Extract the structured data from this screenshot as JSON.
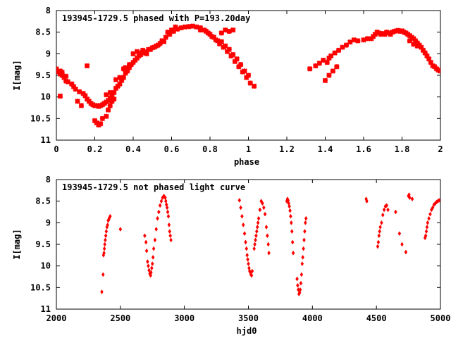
{
  "chart_data": [
    {
      "type": "scatter",
      "title": "193945-1729.5 phased with P=193.20day",
      "xlabel": "phase",
      "ylabel": "I[mag]",
      "xlim": [
        0,
        2
      ],
      "ylim": [
        8,
        11
      ],
      "y_inverted": true,
      "xticks": [
        0,
        0.2,
        0.4,
        0.6,
        0.8,
        1,
        1.2,
        1.4,
        1.6,
        1.8,
        2
      ],
      "xtick_labels": [
        "0",
        "0.2",
        "0.4",
        "0.6",
        "0.8",
        "1",
        "1.2",
        "1.4",
        "1.6",
        "1.8",
        "2"
      ],
      "yticks": [
        8,
        8.5,
        9,
        9.5,
        10,
        10.5,
        11
      ],
      "ytick_labels": [
        "8",
        "8.5",
        "9",
        "9.5",
        "10",
        "10.5",
        "11"
      ],
      "grid": false,
      "marker_color": "#ff0000",
      "marker": "star",
      "points": [
        [
          0.0,
          9.38
        ],
        [
          0.01,
          9.42
        ],
        [
          0.02,
          9.47
        ],
        [
          0.03,
          9.5
        ],
        [
          0.04,
          9.55
        ],
        [
          0.05,
          9.63
        ],
        [
          0.06,
          9.65
        ],
        [
          0.08,
          9.7
        ],
        [
          0.09,
          9.76
        ],
        [
          0.1,
          9.82
        ],
        [
          0.12,
          9.88
        ],
        [
          0.14,
          9.92
        ],
        [
          0.15,
          9.97
        ],
        [
          0.16,
          10.05
        ],
        [
          0.17,
          10.1
        ],
        [
          0.18,
          10.15
        ],
        [
          0.19,
          10.18
        ],
        [
          0.2,
          10.2
        ],
        [
          0.21,
          10.2
        ],
        [
          0.22,
          10.22
        ],
        [
          0.23,
          10.2
        ],
        [
          0.24,
          10.18
        ],
        [
          0.25,
          10.15
        ],
        [
          0.26,
          10.12
        ],
        [
          0.27,
          10.08
        ],
        [
          0.28,
          10.02
        ],
        [
          0.29,
          9.95
        ],
        [
          0.3,
          9.9
        ],
        [
          0.31,
          9.8
        ],
        [
          0.32,
          9.75
        ],
        [
          0.33,
          9.7
        ],
        [
          0.34,
          9.62
        ],
        [
          0.35,
          9.55
        ],
        [
          0.36,
          9.45
        ],
        [
          0.37,
          9.4
        ],
        [
          0.38,
          9.32
        ],
        [
          0.39,
          9.25
        ],
        [
          0.4,
          9.2
        ],
        [
          0.41,
          9.15
        ],
        [
          0.42,
          9.1
        ],
        [
          0.43,
          9.05
        ],
        [
          0.44,
          9.02
        ],
        [
          0.45,
          8.98
        ],
        [
          0.47,
          8.95
        ],
        [
          0.49,
          8.9
        ],
        [
          0.51,
          8.85
        ],
        [
          0.53,
          8.8
        ],
        [
          0.55,
          8.7
        ],
        [
          0.57,
          8.62
        ],
        [
          0.59,
          8.55
        ],
        [
          0.61,
          8.48
        ],
        [
          0.63,
          8.43
        ],
        [
          0.65,
          8.4
        ],
        [
          0.67,
          8.38
        ],
        [
          0.69,
          8.37
        ],
        [
          0.71,
          8.36
        ],
        [
          0.73,
          8.38
        ],
        [
          0.75,
          8.4
        ],
        [
          0.77,
          8.45
        ],
        [
          0.79,
          8.52
        ],
        [
          0.81,
          8.6
        ],
        [
          0.83,
          8.68
        ],
        [
          0.85,
          8.77
        ],
        [
          0.87,
          8.85
        ],
        [
          0.89,
          8.95
        ],
        [
          0.91,
          9.05
        ],
        [
          0.93,
          9.18
        ],
        [
          0.95,
          9.3
        ],
        [
          0.97,
          9.42
        ],
        [
          0.99,
          9.55
        ],
        [
          1.01,
          9.68
        ],
        [
          1.03,
          9.75
        ],
        [
          0.0,
          9.35
        ],
        [
          0.02,
          9.4
        ],
        [
          0.03,
          9.43
        ],
        [
          0.05,
          9.52
        ],
        [
          0.2,
          10.55
        ],
        [
          0.21,
          10.6
        ],
        [
          0.22,
          10.65
        ],
        [
          0.23,
          10.62
        ],
        [
          0.24,
          10.5
        ],
        [
          0.26,
          10.45
        ],
        [
          0.27,
          10.3
        ],
        [
          0.28,
          10.2
        ],
        [
          0.29,
          10.1
        ],
        [
          0.3,
          10.05
        ],
        [
          0.16,
          9.28
        ],
        [
          0.02,
          9.98
        ],
        [
          0.13,
          10.2
        ],
        [
          0.11,
          10.1
        ],
        [
          0.26,
          9.95
        ],
        [
          0.28,
          9.9
        ],
        [
          0.31,
          9.6
        ],
        [
          0.33,
          9.55
        ],
        [
          0.35,
          9.35
        ],
        [
          0.36,
          9.32
        ],
        [
          0.38,
          9.25
        ],
        [
          0.4,
          9.0
        ],
        [
          0.42,
          8.95
        ],
        [
          0.44,
          8.98
        ],
        [
          0.45,
          8.92
        ],
        [
          0.47,
          9.0
        ],
        [
          0.48,
          8.9
        ],
        [
          0.5,
          8.86
        ],
        [
          0.52,
          8.82
        ],
        [
          0.54,
          8.76
        ],
        [
          0.56,
          8.72
        ],
        [
          0.58,
          8.5
        ],
        [
          0.6,
          8.45
        ],
        [
          0.62,
          8.38
        ],
        [
          0.75,
          8.45
        ],
        [
          0.78,
          8.48
        ],
        [
          0.8,
          8.55
        ],
        [
          0.82,
          8.62
        ],
        [
          0.84,
          8.7
        ],
        [
          0.86,
          8.72
        ],
        [
          0.88,
          8.82
        ],
        [
          0.9,
          8.9
        ],
        [
          0.92,
          9.02
        ],
        [
          0.94,
          9.12
        ],
        [
          0.96,
          9.25
        ],
        [
          0.98,
          9.4
        ],
        [
          1.0,
          9.5
        ],
        [
          0.88,
          8.45
        ],
        [
          0.9,
          8.48
        ],
        [
          0.92,
          8.45
        ],
        [
          0.86,
          8.52
        ],
        [
          1.32,
          9.35
        ],
        [
          1.35,
          9.28
        ],
        [
          1.37,
          9.22
        ],
        [
          1.39,
          9.15
        ],
        [
          1.41,
          9.2
        ],
        [
          1.42,
          9.1
        ],
        [
          1.43,
          9.05
        ],
        [
          1.45,
          8.98
        ],
        [
          1.47,
          8.92
        ],
        [
          1.49,
          8.85
        ],
        [
          1.51,
          8.8
        ],
        [
          1.53,
          8.73
        ],
        [
          1.4,
          9.62
        ],
        [
          1.42,
          9.5
        ],
        [
          1.44,
          9.4
        ],
        [
          1.46,
          9.3
        ],
        [
          1.6,
          8.68
        ],
        [
          1.62,
          8.65
        ],
        [
          1.64,
          8.65
        ],
        [
          1.65,
          8.6
        ],
        [
          1.66,
          8.55
        ],
        [
          1.67,
          8.5
        ],
        [
          1.68,
          8.52
        ],
        [
          1.69,
          8.55
        ],
        [
          1.7,
          8.53
        ],
        [
          1.71,
          8.55
        ],
        [
          1.72,
          8.5
        ],
        [
          1.73,
          8.52
        ],
        [
          1.74,
          8.55
        ],
        [
          1.75,
          8.5
        ],
        [
          1.76,
          8.48
        ],
        [
          1.77,
          8.47
        ],
        [
          1.78,
          8.46
        ],
        [
          1.79,
          8.48
        ],
        [
          1.8,
          8.47
        ],
        [
          1.81,
          8.5
        ],
        [
          1.82,
          8.52
        ],
        [
          1.83,
          8.55
        ],
        [
          1.84,
          8.58
        ],
        [
          1.85,
          8.62
        ],
        [
          1.86,
          8.65
        ],
        [
          1.87,
          8.7
        ],
        [
          1.88,
          8.75
        ],
        [
          1.89,
          8.8
        ],
        [
          1.9,
          8.85
        ],
        [
          1.91,
          8.92
        ],
        [
          1.92,
          8.98
        ],
        [
          1.93,
          9.05
        ],
        [
          1.94,
          9.12
        ],
        [
          1.95,
          9.2
        ],
        [
          1.96,
          9.28
        ],
        [
          1.97,
          9.3
        ],
        [
          1.98,
          9.35
        ],
        [
          1.99,
          9.38
        ],
        [
          2.0,
          9.4
        ],
        [
          1.55,
          8.68
        ],
        [
          1.57,
          8.7
        ],
        [
          1.84,
          8.7
        ],
        [
          1.86,
          8.78
        ],
        [
          1.88,
          8.82
        ]
      ]
    },
    {
      "type": "scatter",
      "title": "193945-1729.5 not phased light curve",
      "xlabel": "hjd0",
      "ylabel": "I[mag]",
      "xlim": [
        2000,
        5000
      ],
      "ylim": [
        8,
        11
      ],
      "y_inverted": true,
      "xticks": [
        2000,
        2500,
        3000,
        3500,
        4000,
        4500,
        5000
      ],
      "xtick_labels": [
        "2000",
        "2500",
        "3000",
        "3500",
        "4000",
        "4500",
        "5000"
      ],
      "yticks": [
        8,
        8.5,
        9,
        9.5,
        10,
        10.5,
        11
      ],
      "ytick_labels": [
        "8",
        "8.5",
        "9",
        "9.5",
        "10",
        "10.5",
        "11"
      ],
      "grid": false,
      "marker_color": "#ff0000",
      "marker": "diamond",
      "points": [
        [
          2355,
          10.6
        ],
        [
          2365,
          10.2
        ],
        [
          2368,
          9.75
        ],
        [
          2372,
          9.7
        ],
        [
          2375,
          9.6
        ],
        [
          2378,
          9.5
        ],
        [
          2382,
          9.4
        ],
        [
          2386,
          9.3
        ],
        [
          2390,
          9.2
        ],
        [
          2395,
          9.1
        ],
        [
          2400,
          9.05
        ],
        [
          2405,
          8.95
        ],
        [
          2410,
          8.92
        ],
        [
          2415,
          8.88
        ],
        [
          2420,
          8.85
        ],
        [
          2500,
          9.15
        ],
        [
          2690,
          9.3
        ],
        [
          2700,
          9.45
        ],
        [
          2705,
          9.65
        ],
        [
          2712,
          9.9
        ],
        [
          2718,
          10.0
        ],
        [
          2724,
          10.1
        ],
        [
          2730,
          10.18
        ],
        [
          2736,
          10.22
        ],
        [
          2740,
          10.15
        ],
        [
          2745,
          10.05
        ],
        [
          2750,
          9.95
        ],
        [
          2755,
          9.8
        ],
        [
          2760,
          9.6
        ],
        [
          2770,
          9.4
        ],
        [
          2780,
          9.15
        ],
        [
          2790,
          8.9
        ],
        [
          2800,
          8.75
        ],
        [
          2810,
          8.6
        ],
        [
          2820,
          8.5
        ],
        [
          2830,
          8.42
        ],
        [
          2840,
          8.38
        ],
        [
          2850,
          8.42
        ],
        [
          2855,
          8.5
        ],
        [
          2860,
          8.58
        ],
        [
          2865,
          8.65
        ],
        [
          2870,
          8.75
        ],
        [
          2875,
          8.85
        ],
        [
          2880,
          9.05
        ],
        [
          2885,
          9.2
        ],
        [
          2890,
          9.3
        ],
        [
          2895,
          9.4
        ],
        [
          3430,
          8.48
        ],
        [
          3440,
          8.65
        ],
        [
          3450,
          8.85
        ],
        [
          3460,
          9.05
        ],
        [
          3470,
          9.25
        ],
        [
          3478,
          9.45
        ],
        [
          3485,
          9.6
        ],
        [
          3490,
          9.75
        ],
        [
          3495,
          9.85
        ],
        [
          3500,
          9.95
        ],
        [
          3505,
          10.05
        ],
        [
          3510,
          10.12
        ],
        [
          3515,
          10.15
        ],
        [
          3520,
          10.2
        ],
        [
          3525,
          10.22
        ],
        [
          3530,
          10.12
        ],
        [
          3545,
          9.6
        ],
        [
          3550,
          9.5
        ],
        [
          3555,
          9.4
        ],
        [
          3560,
          9.3
        ],
        [
          3565,
          9.2
        ],
        [
          3570,
          9.1
        ],
        [
          3575,
          9.0
        ],
        [
          3580,
          8.9
        ],
        [
          3590,
          8.7
        ],
        [
          3600,
          8.5
        ],
        [
          3610,
          8.55
        ],
        [
          3620,
          8.65
        ],
        [
          3630,
          8.8
        ],
        [
          3640,
          9.1
        ],
        [
          3648,
          9.3
        ],
        [
          3655,
          9.5
        ],
        [
          3660,
          9.7
        ],
        [
          3800,
          8.5
        ],
        [
          3805,
          8.45
        ],
        [
          3810,
          8.48
        ],
        [
          3815,
          8.55
        ],
        [
          3820,
          8.62
        ],
        [
          3825,
          8.72
        ],
        [
          3830,
          8.85
        ],
        [
          3835,
          9.0
        ],
        [
          3840,
          9.2
        ],
        [
          3845,
          9.45
        ],
        [
          3850,
          9.7
        ],
        [
          3880,
          10.3
        ],
        [
          3885,
          10.45
        ],
        [
          3890,
          10.55
        ],
        [
          3895,
          10.65
        ],
        [
          3900,
          10.62
        ],
        [
          3905,
          10.55
        ],
        [
          3910,
          10.4
        ],
        [
          3915,
          10.2
        ],
        [
          3920,
          9.95
        ],
        [
          3925,
          9.8
        ],
        [
          3930,
          9.6
        ],
        [
          3935,
          9.4
        ],
        [
          3940,
          9.2
        ],
        [
          3945,
          9.0
        ],
        [
          3950,
          8.9
        ],
        [
          4420,
          8.45
        ],
        [
          4425,
          8.5
        ],
        [
          4510,
          9.55
        ],
        [
          4515,
          9.45
        ],
        [
          4520,
          9.3
        ],
        [
          4525,
          9.2
        ],
        [
          4530,
          9.1
        ],
        [
          4540,
          9.0
        ],
        [
          4550,
          8.82
        ],
        [
          4560,
          8.7
        ],
        [
          4570,
          8.62
        ],
        [
          4580,
          8.6
        ],
        [
          4590,
          8.7
        ],
        [
          4650,
          8.75
        ],
        [
          4680,
          9.25
        ],
        [
          4700,
          9.5
        ],
        [
          4730,
          9.68
        ],
        [
          4750,
          8.38
        ],
        [
          4755,
          8.35
        ],
        [
          4760,
          8.42
        ],
        [
          4780,
          8.45
        ],
        [
          4880,
          9.35
        ],
        [
          4885,
          9.3
        ],
        [
          4890,
          9.2
        ],
        [
          4895,
          9.1
        ],
        [
          4900,
          9.0
        ],
        [
          4910,
          8.9
        ],
        [
          4920,
          8.8
        ],
        [
          4930,
          8.7
        ],
        [
          4940,
          8.65
        ],
        [
          4950,
          8.58
        ],
        [
          4960,
          8.55
        ],
        [
          4970,
          8.52
        ],
        [
          4980,
          8.5
        ],
        [
          4990,
          8.48
        ]
      ]
    }
  ]
}
